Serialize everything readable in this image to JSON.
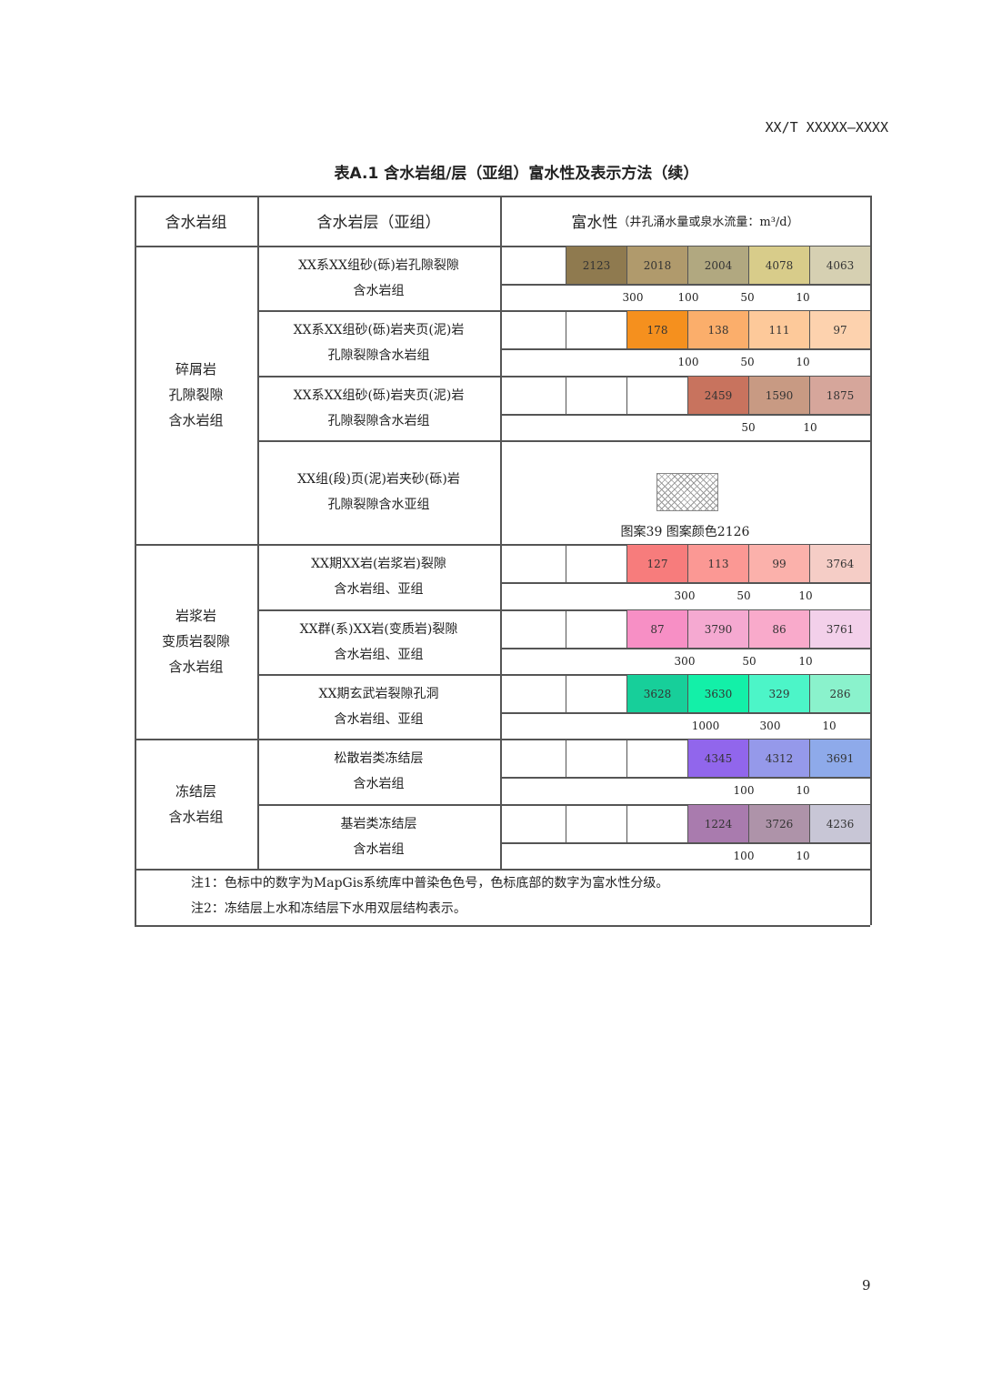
{
  "doc_id": "XX/T XXXXX—XXXX",
  "table_title": "表A.1  含水岩组/层（亚组）富水性及表示方法（续）",
  "page_number": "9",
  "header": {
    "col1": "含水岩组",
    "col2": "含水岩层（亚组）",
    "col3_main": "富水性",
    "col3_sub": "（井孔涌水量或泉水流量：m³/d）"
  },
  "groups": [
    {
      "label": "碎屑岩\n孔隙裂隙\n含水岩组"
    },
    {
      "label": "岩浆岩\n变质岩裂隙\n含水岩组"
    },
    {
      "label": "冻结层\n含水岩组"
    }
  ],
  "rows": [
    {
      "layer": "XX系XX组砂(砾)岩孔隙裂隙\n含水岩组",
      "start": 1,
      "swatches": [
        {
          "code": "2123",
          "color": "#8f7a4f"
        },
        {
          "code": "2018",
          "color": "#b09a6c"
        },
        {
          "code": "2004",
          "color": "#b1a880"
        },
        {
          "code": "4078",
          "color": "#d8cc8a"
        },
        {
          "code": "4063",
          "color": "#d6d0b2"
        }
      ],
      "scale": [
        "300",
        "100",
        "50",
        "10"
      ]
    },
    {
      "layer": "XX系XX组砂(砾)岩夹页(泥)岩\n孔隙裂隙含水岩组",
      "start": 2,
      "swatches": [
        {
          "code": "178",
          "color": "#f5901e"
        },
        {
          "code": "138",
          "color": "#fbae6b"
        },
        {
          "code": "111",
          "color": "#fdc99a"
        },
        {
          "code": "97",
          "color": "#fdd2ae"
        }
      ],
      "scale": [
        "100",
        "50",
        "10"
      ]
    },
    {
      "layer": "XX系XX组砂(砾)岩夹页(泥)岩\n孔隙裂隙含水岩组",
      "start": 3,
      "swatches": [
        {
          "code": "2459",
          "color": "#c8735e"
        },
        {
          "code": "1590",
          "color": "#c89a83"
        },
        {
          "code": "1875",
          "color": "#d6a69b"
        }
      ],
      "scale": [
        "50",
        "10"
      ]
    },
    {
      "layer": "XX组(段)页(泥)岩夹砂(砾)岩\n孔隙裂隙含水亚组",
      "pattern": {
        "caption": "图案39   图案颜色2126",
        "icon": "crosshatch-pattern"
      }
    },
    {
      "layer": "XX期XX岩(岩浆岩)裂隙\n含水岩组、亚组",
      "start": 2,
      "swatches": [
        {
          "code": "127",
          "color": "#f77c7c"
        },
        {
          "code": "113",
          "color": "#fb9894"
        },
        {
          "code": "99",
          "color": "#fbb1ab"
        },
        {
          "code": "3764",
          "color": "#f5cdc6"
        }
      ],
      "scale": [
        "300",
        "50",
        "10"
      ]
    },
    {
      "layer": "XX群(系)XX岩(变质岩)裂隙\n含水岩组、亚组",
      "start": 2,
      "swatches": [
        {
          "code": "87",
          "color": "#f78fc5"
        },
        {
          "code": "3790",
          "color": "#f5a9d1"
        },
        {
          "code": "86",
          "color": "#f9aacb"
        },
        {
          "code": "3761",
          "color": "#f3d0ea"
        }
      ],
      "scale": [
        "300",
        "50",
        "10"
      ]
    },
    {
      "layer": "XX期玄武岩裂隙孔洞\n含水岩组、亚组",
      "start": 2,
      "swatches": [
        {
          "code": "3628",
          "color": "#17cf9a"
        },
        {
          "code": "3630",
          "color": "#13f0a8"
        },
        {
          "code": "329",
          "color": "#4cf5c8"
        },
        {
          "code": "286",
          "color": "#8af2cc"
        }
      ],
      "scale": [
        "1000",
        "300",
        "10"
      ]
    },
    {
      "layer": "松散岩类冻结层\n含水岩组",
      "start": 3,
      "swatches": [
        {
          "code": "4345",
          "color": "#9166ec"
        },
        {
          "code": "4312",
          "color": "#9599ea"
        },
        {
          "code": "3691",
          "color": "#8eaaea"
        }
      ],
      "scale": [
        "100",
        "10"
      ]
    },
    {
      "layer": "基岩类冻结层\n含水岩组",
      "start": 3,
      "swatches": [
        {
          "code": "1224",
          "color": "#a97bae"
        },
        {
          "code": "3726",
          "color": "#ae93a9"
        },
        {
          "code": "4236",
          "color": "#c8c6d6"
        }
      ],
      "scale": [
        "100",
        "10"
      ]
    }
  ],
  "notes": [
    "注1：色标中的数字为MapGis系统库中普染色色号，色标底部的数字为富水性分级。",
    "注2：冻结层上水和冻结层下水用双层结构表示。"
  ]
}
